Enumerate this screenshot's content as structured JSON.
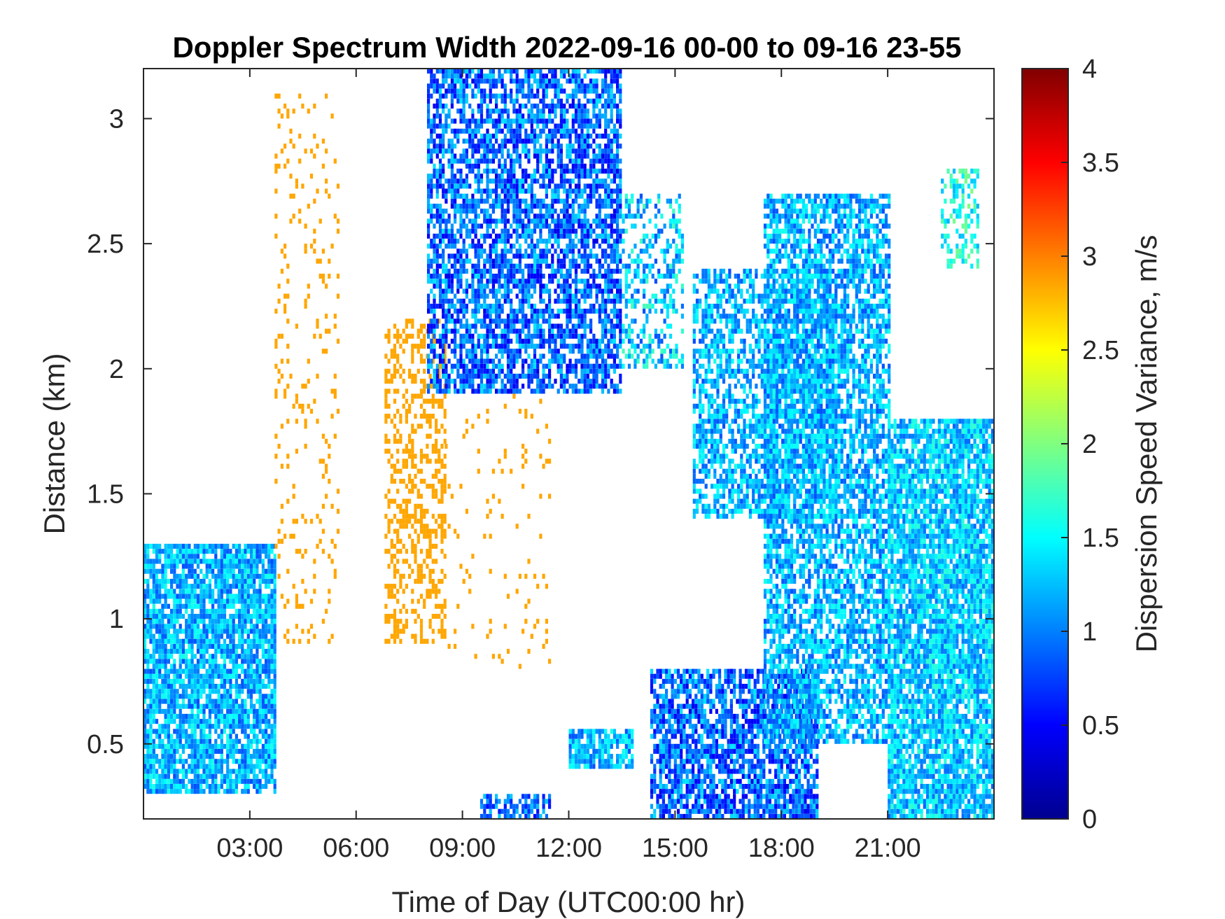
{
  "chart_data": {
    "type": "heatmap",
    "title": "Doppler Spectrum Width 2022-09-16 00-00 to 09-16 23-55",
    "xlabel": "Time of Day (UTC00:00 hr)",
    "ylabel": "Distance (km)",
    "xlim": [
      0,
      24
    ],
    "ylim": [
      0.2,
      3.2
    ],
    "x_ticks": [
      3,
      6,
      9,
      12,
      15,
      18,
      21
    ],
    "x_tick_labels": [
      "03:00",
      "06:00",
      "09:00",
      "12:00",
      "15:00",
      "18:00",
      "21:00"
    ],
    "y_ticks": [
      0.5,
      1,
      1.5,
      2,
      2.5,
      3
    ],
    "y_tick_labels": [
      "0.5",
      "1",
      "1.5",
      "2",
      "2.5",
      "3"
    ],
    "colorbar": {
      "label": "Dispersion Speed Variance, m/s",
      "range": [
        0,
        4
      ],
      "ticks": [
        0,
        0.5,
        1,
        1.5,
        2,
        2.5,
        3,
        3.5,
        4
      ],
      "tick_labels": [
        "0",
        "0.5",
        "1",
        "1.5",
        "2",
        "2.5",
        "3",
        "3.5",
        "4"
      ],
      "colormap": "jet"
    },
    "regions": [
      {
        "t0": 0.0,
        "t1": 3.7,
        "h0": 0.3,
        "h1": 1.3,
        "value": 1.2,
        "spread": 0.4,
        "density": 0.85
      },
      {
        "t0": 3.7,
        "t1": 5.5,
        "h0": 0.9,
        "h1": 3.1,
        "value": 2.85,
        "spread": 0.0,
        "density": 0.1
      },
      {
        "t0": 6.8,
        "t1": 8.5,
        "h0": 0.9,
        "h1": 2.2,
        "value": 2.85,
        "spread": 0.0,
        "density": 0.4
      },
      {
        "t0": 8.5,
        "t1": 11.5,
        "h0": 0.8,
        "h1": 2.0,
        "value": 2.85,
        "spread": 0.0,
        "density": 0.05
      },
      {
        "t0": 8.0,
        "t1": 13.5,
        "h0": 1.9,
        "h1": 3.2,
        "value": 0.9,
        "spread": 0.5,
        "density": 0.7
      },
      {
        "t0": 13.5,
        "t1": 15.2,
        "h0": 2.0,
        "h1": 2.7,
        "value": 1.3,
        "spread": 0.5,
        "density": 0.4
      },
      {
        "t0": 12.0,
        "t1": 13.8,
        "h0": 0.4,
        "h1": 0.55,
        "value": 1.2,
        "spread": 0.4,
        "density": 0.8
      },
      {
        "t0": 9.5,
        "t1": 11.5,
        "h0": 0.2,
        "h1": 0.3,
        "value": 0.9,
        "spread": 0.4,
        "density": 0.6
      },
      {
        "t0": 14.3,
        "t1": 19.0,
        "h0": 0.2,
        "h1": 0.8,
        "value": 0.9,
        "spread": 0.5,
        "density": 0.75
      },
      {
        "t0": 15.5,
        "t1": 19.5,
        "h0": 1.4,
        "h1": 2.4,
        "value": 1.2,
        "spread": 0.4,
        "density": 0.6
      },
      {
        "t0": 17.5,
        "t1": 21.0,
        "h0": 0.5,
        "h1": 2.7,
        "value": 1.2,
        "spread": 0.4,
        "density": 0.7
      },
      {
        "t0": 21.0,
        "t1": 24.0,
        "h0": 0.2,
        "h1": 1.8,
        "value": 1.3,
        "spread": 0.4,
        "density": 0.85
      },
      {
        "t0": 22.5,
        "t1": 23.5,
        "h0": 2.4,
        "h1": 2.8,
        "value": 1.6,
        "spread": 0.4,
        "density": 0.4
      }
    ]
  }
}
